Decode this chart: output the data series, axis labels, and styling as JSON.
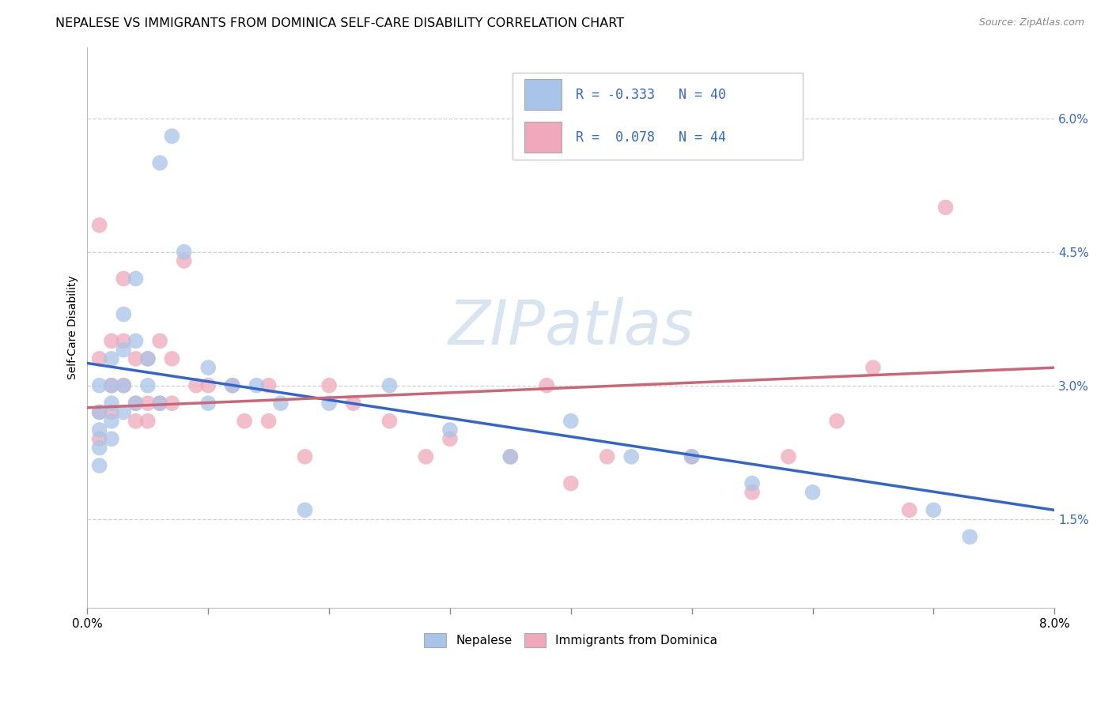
{
  "title": "NEPALESE VS IMMIGRANTS FROM DOMINICA SELF-CARE DISABILITY CORRELATION CHART",
  "source": "Source: ZipAtlas.com",
  "ylabel": "Self-Care Disability",
  "xlim": [
    0.0,
    0.08
  ],
  "ylim": [
    0.005,
    0.068
  ],
  "yticks": [
    0.015,
    0.03,
    0.045,
    0.06
  ],
  "ytick_labels": [
    "1.5%",
    "3.0%",
    "4.5%",
    "6.0%"
  ],
  "xticks": [
    0.0,
    0.01,
    0.02,
    0.03,
    0.04,
    0.05,
    0.06,
    0.07,
    0.08
  ],
  "xtick_labels": [
    "0.0%",
    "",
    "",
    "",
    "",
    "",
    "",
    "",
    "8.0%"
  ],
  "nepalese_R": -0.333,
  "nepalese_N": 40,
  "dominica_R": 0.078,
  "dominica_N": 44,
  "nepalese_color": "#a8c4e8",
  "dominica_color": "#f0a8bc",
  "nepalese_line_color": "#3366cc",
  "dominica_line_color": "#cc6677",
  "background_color": "#ffffff",
  "grid_color": "#d0d0d0",
  "watermark_color": "#d8e4f0",
  "title_fontsize": 11.5,
  "axis_label_fontsize": 10,
  "nepalese_x": [
    0.001,
    0.001,
    0.001,
    0.001,
    0.001,
    0.002,
    0.002,
    0.002,
    0.002,
    0.002,
    0.003,
    0.003,
    0.003,
    0.003,
    0.004,
    0.004,
    0.004,
    0.005,
    0.005,
    0.006,
    0.006,
    0.007,
    0.008,
    0.01,
    0.01,
    0.012,
    0.014,
    0.016,
    0.018,
    0.02,
    0.025,
    0.03,
    0.035,
    0.04,
    0.045,
    0.05,
    0.055,
    0.06,
    0.07,
    0.073
  ],
  "nepalese_y": [
    0.03,
    0.027,
    0.025,
    0.023,
    0.021,
    0.033,
    0.03,
    0.028,
    0.026,
    0.024,
    0.038,
    0.034,
    0.03,
    0.027,
    0.042,
    0.035,
    0.028,
    0.033,
    0.03,
    0.055,
    0.028,
    0.058,
    0.045,
    0.032,
    0.028,
    0.03,
    0.03,
    0.028,
    0.016,
    0.028,
    0.03,
    0.025,
    0.022,
    0.026,
    0.022,
    0.022,
    0.019,
    0.018,
    0.016,
    0.013
  ],
  "dominica_x": [
    0.001,
    0.001,
    0.001,
    0.001,
    0.002,
    0.002,
    0.002,
    0.003,
    0.003,
    0.003,
    0.004,
    0.004,
    0.004,
    0.005,
    0.005,
    0.005,
    0.006,
    0.006,
    0.007,
    0.007,
    0.008,
    0.009,
    0.01,
    0.012,
    0.013,
    0.015,
    0.015,
    0.018,
    0.02,
    0.022,
    0.025,
    0.028,
    0.03,
    0.035,
    0.038,
    0.04,
    0.043,
    0.05,
    0.055,
    0.058,
    0.062,
    0.065,
    0.068,
    0.071
  ],
  "dominica_y": [
    0.048,
    0.033,
    0.027,
    0.024,
    0.035,
    0.03,
    0.027,
    0.042,
    0.035,
    0.03,
    0.033,
    0.028,
    0.026,
    0.033,
    0.028,
    0.026,
    0.035,
    0.028,
    0.033,
    0.028,
    0.044,
    0.03,
    0.03,
    0.03,
    0.026,
    0.03,
    0.026,
    0.022,
    0.03,
    0.028,
    0.026,
    0.022,
    0.024,
    0.022,
    0.03,
    0.019,
    0.022,
    0.022,
    0.018,
    0.022,
    0.026,
    0.032,
    0.016,
    0.05
  ],
  "trend_blue_x0": 0.0,
  "trend_blue_y0": 0.0325,
  "trend_blue_x1": 0.08,
  "trend_blue_y1": 0.016,
  "trend_pink_x0": 0.0,
  "trend_pink_y0": 0.0275,
  "trend_pink_x1": 0.08,
  "trend_pink_y1": 0.032
}
